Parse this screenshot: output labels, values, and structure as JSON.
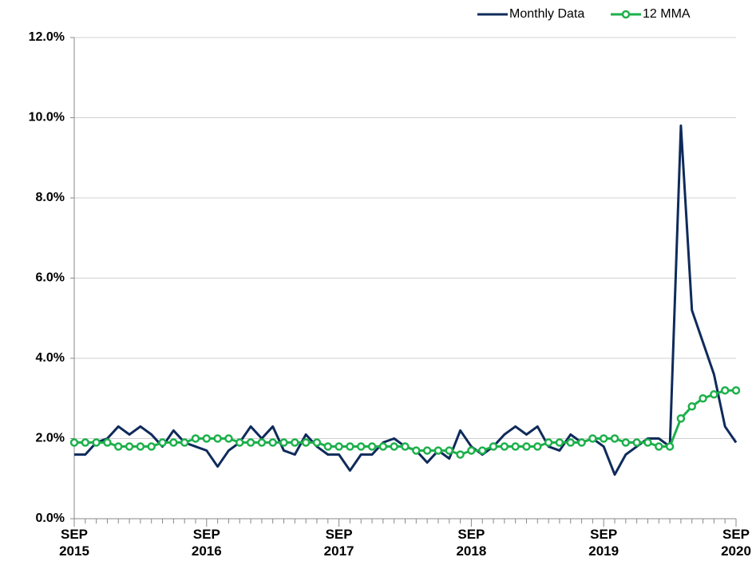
{
  "chart_data": {
    "type": "line",
    "categories": [
      "SEP\n2015",
      null,
      null,
      null,
      null,
      null,
      null,
      null,
      null,
      null,
      null,
      null,
      "SEP\n2016",
      null,
      null,
      null,
      null,
      null,
      null,
      null,
      null,
      null,
      null,
      null,
      "SEP\n2017",
      null,
      null,
      null,
      null,
      null,
      null,
      null,
      null,
      null,
      null,
      null,
      "SEP\n2018",
      null,
      null,
      null,
      null,
      null,
      null,
      null,
      null,
      null,
      null,
      null,
      "SEP\n2019",
      null,
      null,
      null,
      null,
      null,
      null,
      null,
      null,
      null,
      null,
      null,
      "SEP\n2020"
    ],
    "series": [
      {
        "name": "Monthly Data",
        "color": "#0f2b5b",
        "marker": false,
        "values": [
          1.6,
          1.6,
          1.9,
          2.0,
          2.3,
          2.1,
          2.3,
          2.1,
          1.8,
          2.2,
          1.9,
          1.8,
          1.7,
          1.3,
          1.7,
          1.9,
          2.3,
          2.0,
          2.3,
          1.7,
          1.6,
          2.1,
          1.8,
          1.6,
          1.6,
          1.2,
          1.6,
          1.6,
          1.9,
          2.0,
          1.8,
          1.7,
          1.4,
          1.7,
          1.5,
          2.2,
          1.8,
          1.6,
          1.8,
          2.1,
          2.3,
          2.1,
          2.3,
          1.8,
          1.7,
          2.1,
          1.9,
          2.0,
          1.8,
          1.1,
          1.6,
          1.8,
          2.0,
          2.0,
          1.8,
          9.8,
          5.2,
          4.4,
          3.6,
          2.3,
          1.9
        ]
      },
      {
        "name": "12 MMA",
        "color": "#1db04b",
        "marker": true,
        "values": [
          1.9,
          1.9,
          1.9,
          1.9,
          1.8,
          1.8,
          1.8,
          1.8,
          1.9,
          1.9,
          1.9,
          2.0,
          2.0,
          2.0,
          2.0,
          1.9,
          1.9,
          1.9,
          1.9,
          1.9,
          1.9,
          1.9,
          1.9,
          1.8,
          1.8,
          1.8,
          1.8,
          1.8,
          1.8,
          1.8,
          1.8,
          1.7,
          1.7,
          1.7,
          1.7,
          1.6,
          1.7,
          1.7,
          1.8,
          1.8,
          1.8,
          1.8,
          1.8,
          1.9,
          1.9,
          1.9,
          1.9,
          2.0,
          2.0,
          2.0,
          1.9,
          1.9,
          1.9,
          1.8,
          1.8,
          2.5,
          2.8,
          3.0,
          3.1,
          3.2,
          3.2
        ]
      }
    ],
    "ylim": [
      0,
      12
    ],
    "yticks": [
      {
        "value": 0,
        "label": "0.0%"
      },
      {
        "value": 2,
        "label": "2.0%"
      },
      {
        "value": 4,
        "label": "4.0%"
      },
      {
        "value": 6,
        "label": "6.0%"
      },
      {
        "value": 8,
        "label": "8.0%"
      },
      {
        "value": 10,
        "label": "10.0%"
      },
      {
        "value": 12,
        "label": "12.0%"
      }
    ],
    "grid": true,
    "legend": "top-right"
  }
}
